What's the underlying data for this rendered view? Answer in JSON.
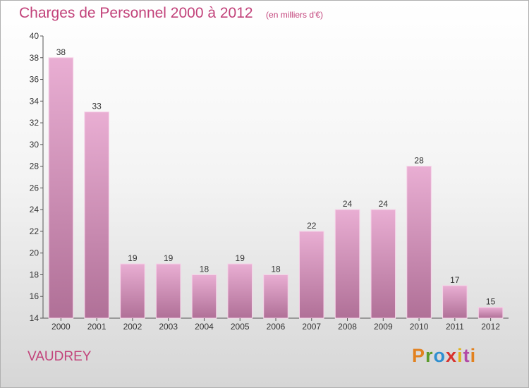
{
  "header": {
    "title": "Charges de Personnel 2000 à 2012",
    "subtitle": "(en milliers d'€)"
  },
  "footer": {
    "commune": "VAUDREY",
    "logo": "Proxiti",
    "logo_colors": [
      "#e2811f",
      "#5b9b2c",
      "#2f8fd0",
      "#d8332f",
      "#e0b11c",
      "#b24aa6",
      "#e2811f"
    ]
  },
  "colors": {
    "bar_top": "#e9aed3",
    "bar_bottom": "#b07097",
    "bar_edge": "#f6d2e8",
    "accent_text": "#c2427a"
  },
  "chart_data": {
    "type": "bar",
    "title": "Charges de Personnel 2000 à 2012",
    "subtitle": "(en milliers d'€)",
    "categories": [
      "2000",
      "2001",
      "2002",
      "2003",
      "2004",
      "2005",
      "2006",
      "2007",
      "2008",
      "2009",
      "2010",
      "2011",
      "2012"
    ],
    "values": [
      38,
      33,
      19,
      19,
      18,
      19,
      18,
      22,
      24,
      24,
      28,
      17,
      15
    ],
    "ylim": [
      14,
      40
    ],
    "yticks": [
      14,
      16,
      18,
      20,
      22,
      24,
      26,
      28,
      30,
      32,
      34,
      36,
      38,
      40
    ],
    "grid": false,
    "legend": "none"
  }
}
